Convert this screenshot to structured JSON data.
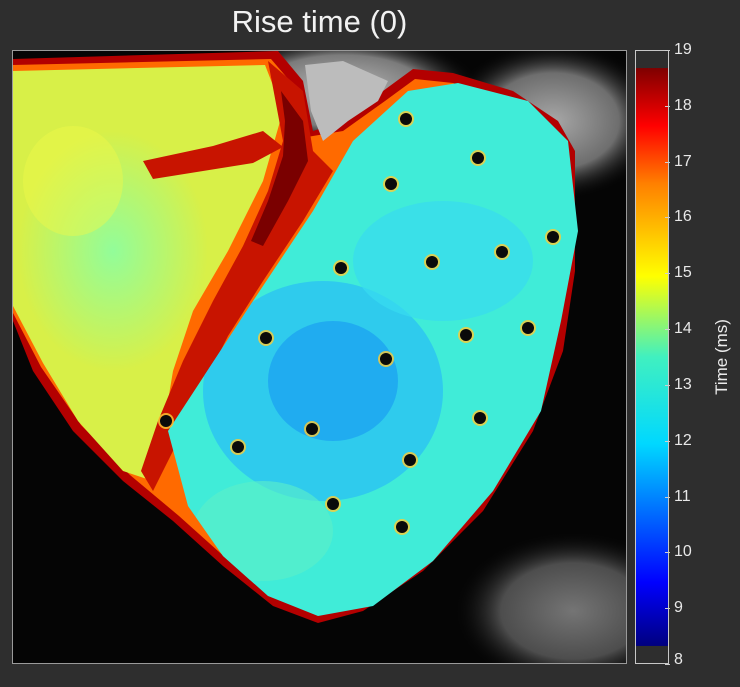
{
  "title": "Rise time (0)",
  "chart_data": {
    "type": "heatmap",
    "title": "Rise time (0)",
    "colorbar": {
      "label": "Time (ms)",
      "min": 8,
      "max": 19,
      "ticks": [
        8,
        9,
        10,
        11,
        12,
        13,
        14,
        15,
        16,
        17,
        18,
        19
      ],
      "colormap": "jet"
    },
    "regions": [
      {
        "region": "right ventricle (upper left)",
        "value_ms": 14.5
      },
      {
        "region": "septal / atrial border (red band)",
        "value_ms": 18.3
      },
      {
        "region": "left ventricle (right)",
        "value_ms": 12.3
      },
      {
        "region": "earliest activation zone (center)",
        "value_ms": 11.3
      },
      {
        "region": "epicardial edge rim",
        "value_ms": 17.5
      }
    ],
    "markers": {
      "count": 18,
      "description": "dark electrode / fiducial dots"
    },
    "grid": false
  },
  "colors": {
    "background": "#2e2e2e",
    "frame": "#9a9a9a"
  }
}
